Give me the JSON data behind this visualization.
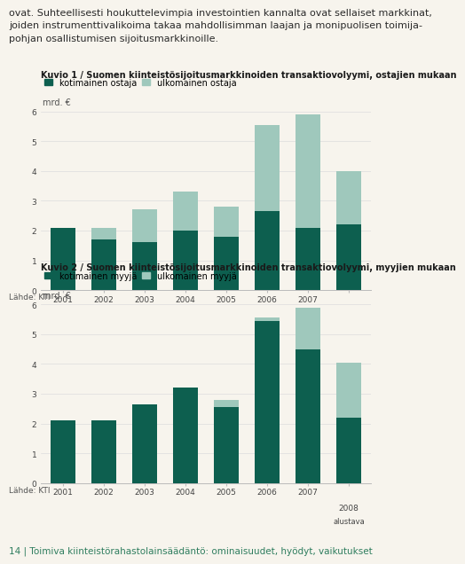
{
  "years": [
    2001,
    2002,
    2003,
    2004,
    2005,
    2006,
    2007,
    2008
  ],
  "chart1": {
    "title": "Kuvio 1 / Suomen kiinteistösijoitusmarkkinoiden transaktiovolyymi, ostajien mukaan",
    "legend1": "kotimainen ostaja",
    "legend2": "ulkomainen ostaja",
    "domestic": [
      2.1,
      1.7,
      1.6,
      2.0,
      1.8,
      2.65,
      2.1,
      2.2
    ],
    "foreign": [
      0.0,
      0.4,
      1.1,
      1.3,
      1.0,
      2.9,
      3.8,
      1.8
    ]
  },
  "chart2": {
    "title": "Kuvio 2 / Suomen kiinteistösijoitusmarkkinoiden transaktiovolyymi, myyjien mukaan",
    "legend1": "kotimainen myyjä",
    "legend2": "ulkomainen myyjä",
    "domestic": [
      2.1,
      2.1,
      2.65,
      3.2,
      2.55,
      5.45,
      4.5,
      2.2
    ],
    "foreign": [
      0.0,
      0.0,
      0.0,
      0.0,
      0.25,
      0.1,
      1.4,
      1.85
    ]
  },
  "color_domestic": "#0d5f4f",
  "color_foreign": "#9fc8bc",
  "background_color": "#f7f4ed",
  "ylabel": "mrd. €",
  "source": "Lähde: KTI",
  "alustava": "alustava",
  "footer_text": "14 | Toimiva kiinteistörahastolainsäädäntö: ominaisuudet, hyödyt, vaikutukset",
  "footer_color": "#2e7d5e",
  "ylim": [
    0,
    6
  ],
  "yticks": [
    0,
    1,
    2,
    3,
    4,
    5,
    6
  ],
  "bar_width": 0.6,
  "intro_text": "ovat. Suhteellisesti houkuttelevimpia investointien kannalta ovat sellaiset markkinat,\njoiden instrumenttivalikoima takaa mahdollisimman laajan ja monipuolisen toimija-\npohjan osallistumisen sijoitusmarkkinoille.",
  "title_fontsize": 7.0,
  "tick_fontsize": 6.5,
  "legend_fontsize": 7.0,
  "ylabel_fontsize": 7.0,
  "source_fontsize": 6.5,
  "footer_fontsize": 7.5,
  "intro_fontsize": 8.0
}
